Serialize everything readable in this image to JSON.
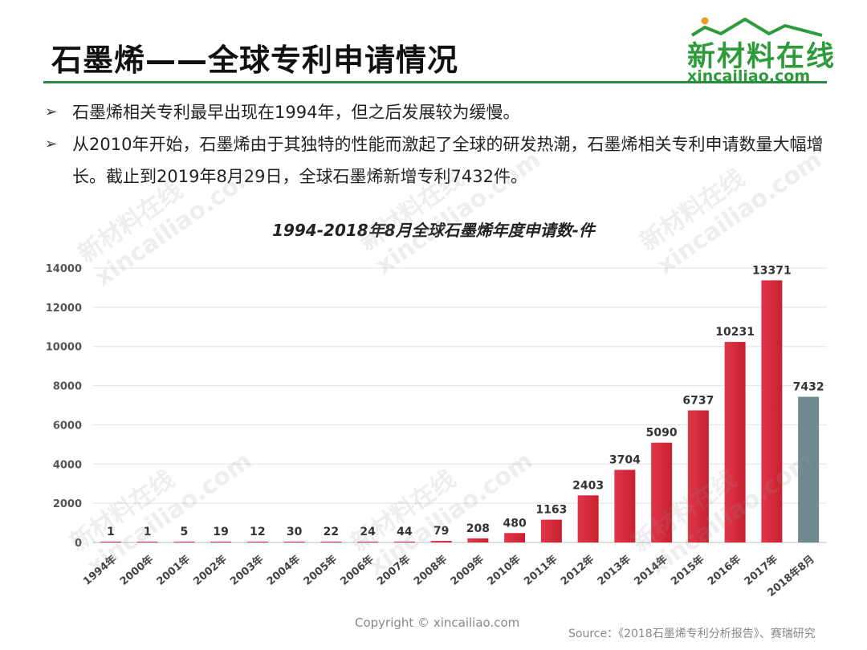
{
  "header": {
    "title": "石墨烯——全球专利申请情况",
    "logo_cn": "新材料在线",
    "logo_en": "xincailiao.com",
    "accent_color": "#2a8a43"
  },
  "bullets": [
    "石墨烯相关专利最早出现在1994年，但之后发展较为缓慢。",
    "从2010年开始，石墨烯由于其独特的性能而激起了全球的研发热潮，石墨烯相关专利申请数量大幅增长。截止到2019年8月29日，全球石墨烯新增专利7432件。"
  ],
  "bullet_icon": "arrow-bullet-icon",
  "chart_data": {
    "type": "bar",
    "title": "1994-2018年8月全球石墨烯年度申请数-件",
    "xlabel": "",
    "ylabel": "",
    "categories": [
      "1994年",
      "2000年",
      "2001年",
      "2002年",
      "2003年",
      "2004年",
      "2005年",
      "2006年",
      "2007年",
      "2008年",
      "2009年",
      "2010年",
      "2011年",
      "2012年",
      "2013年",
      "2014年",
      "2015年",
      "2016年",
      "2017年",
      "2018年8月"
    ],
    "values": [
      1,
      1,
      5,
      19,
      12,
      30,
      22,
      24,
      44,
      79,
      208,
      480,
      1163,
      2403,
      3704,
      5090,
      6737,
      10231,
      13371,
      7432
    ],
    "ylim": [
      0,
      14000
    ],
    "yticks": [
      0,
      2000,
      4000,
      6000,
      8000,
      10000,
      12000,
      14000
    ],
    "grid": true,
    "bar_color": "#c8202f",
    "highlight_color": "#6e8a8f",
    "highlight_index": 19
  },
  "watermark": {
    "cn": "新材料在线",
    "en": "xincailiao.com"
  },
  "footer": {
    "copyright": "Copyright © xincailiao.com",
    "source": "Source：《2018石墨烯专利分析报告》、赛瑞研究"
  }
}
